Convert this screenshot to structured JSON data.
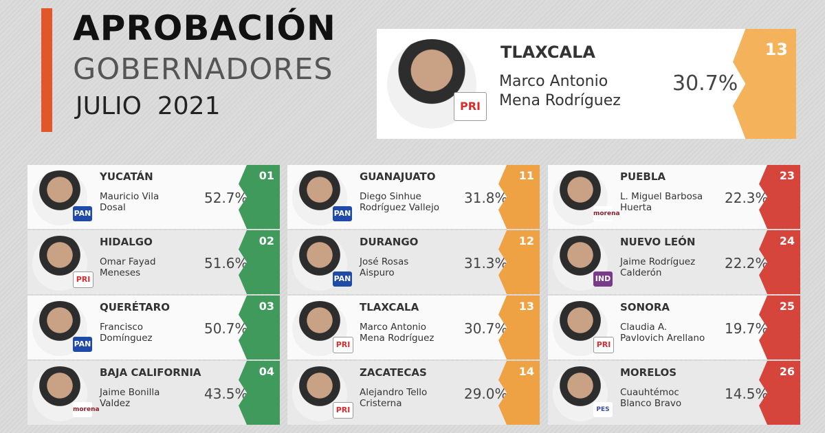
{
  "header": {
    "title": "APROBACIÓN",
    "subtitle": "GOBERNADORES",
    "date": "JULIO  2021"
  },
  "featured": {
    "state": "TLAXCALA",
    "name": [
      "Marco Antonio",
      "Mena Rodríguez"
    ],
    "percent": "30.7%",
    "rank": "13",
    "party": "PRI"
  },
  "columns": [
    {
      "color": "#3f9a5b",
      "rows": [
        {
          "state": "YUCATÁN",
          "name": [
            "Mauricio Vila",
            "Dosal"
          ],
          "percent": "52.7%",
          "rank": "01",
          "party": "PAN"
        },
        {
          "state": "HIDALGO",
          "name": [
            "Omar Fayad",
            "Meneses"
          ],
          "percent": "51.6%",
          "rank": "02",
          "party": "PRI"
        },
        {
          "state": "QUERÉTARO",
          "name": [
            "Francisco",
            "Domínguez"
          ],
          "percent": "50.7%",
          "rank": "03",
          "party": "PAN"
        },
        {
          "state": "BAJA CALIFORNIA",
          "name": [
            "Jaime Bonilla",
            "Valdez"
          ],
          "percent": "43.5%",
          "rank": "04",
          "party": "morena"
        }
      ]
    },
    {
      "color": "#efa243",
      "rows": [
        {
          "state": "GUANAJUATO",
          "name": [
            "Diego Sinhue",
            "Rodríguez Vallejo"
          ],
          "percent": "31.8%",
          "rank": "11",
          "party": "PAN"
        },
        {
          "state": "DURANGO",
          "name": [
            "José Rosas",
            "Aispuro"
          ],
          "percent": "31.3%",
          "rank": "12",
          "party": "PAN"
        },
        {
          "state": "TLAXCALA",
          "name": [
            "Marco Antonio",
            "Mena Rodríguez"
          ],
          "percent": "30.7%",
          "rank": "13",
          "party": "PRI"
        },
        {
          "state": "ZACATECAS",
          "name": [
            "Alejandro Tello",
            "Cristerna"
          ],
          "percent": "29.0%",
          "rank": "14",
          "party": "PRI"
        }
      ]
    },
    {
      "color": "#d6453c",
      "rows": [
        {
          "state": "PUEBLA",
          "name": [
            "L. Miguel Barbosa",
            "Huerta"
          ],
          "percent": "22.3%",
          "rank": "23",
          "party": "morena"
        },
        {
          "state": "NUEVO LEÓN",
          "name": [
            "Jaime Rodríguez",
            "Calderón"
          ],
          "percent": "22.2%",
          "rank": "24",
          "party": "IND"
        },
        {
          "state": "SONORA",
          "name": [
            "Claudia A.",
            "Pavlovich Arellano"
          ],
          "percent": "19.7%",
          "rank": "25",
          "party": "PRI"
        },
        {
          "state": "MORELOS",
          "name": [
            "Cuauhtémoc",
            "Blanco Bravo"
          ],
          "percent": "14.5%",
          "rank": "26",
          "party": "PES"
        }
      ]
    }
  ]
}
